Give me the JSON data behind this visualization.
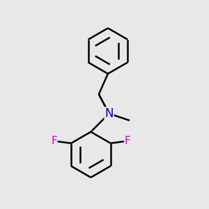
{
  "background_color": "#e8e8e8",
  "bond_color": "#000000",
  "N_color": "#0000cc",
  "F_color": "#cc00cc",
  "bond_width": 1.8,
  "dbo": 0.018,
  "figsize": [
    3.0,
    3.0
  ],
  "dpi": 100,
  "xlim": [
    0.05,
    0.95
  ],
  "ylim": [
    0.05,
    0.95
  ]
}
